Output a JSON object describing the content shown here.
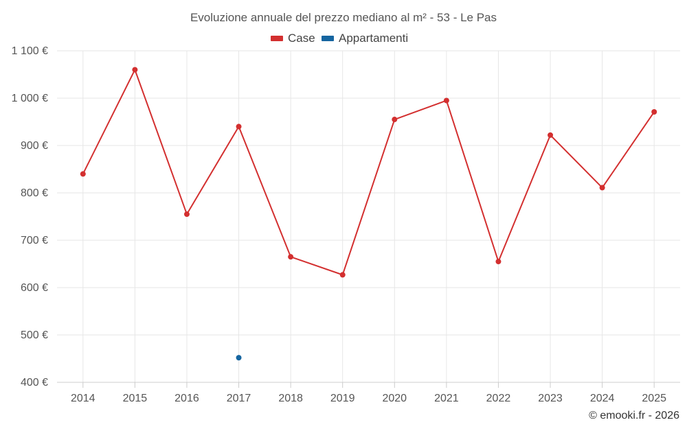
{
  "chart_data": {
    "type": "line",
    "title": "Evoluzione annuale del prezzo mediano al m² - 53 - Le Pas",
    "categories": [
      "2014",
      "2015",
      "2016",
      "2017",
      "2018",
      "2019",
      "2020",
      "2021",
      "2022",
      "2023",
      "2024",
      "2025"
    ],
    "ylim": [
      400,
      1100
    ],
    "yticks": [
      400,
      500,
      600,
      700,
      800,
      900,
      1000,
      1100
    ],
    "ytick_labels": [
      "400 €",
      "500 €",
      "600 €",
      "700 €",
      "800 €",
      "900 €",
      "1 000 €",
      "1 100 €"
    ],
    "grid": true,
    "legend_position": "top-center",
    "series": [
      {
        "name": "Case",
        "color": "#d32f2f",
        "values": [
          840,
          1060,
          755,
          940,
          665,
          627,
          955,
          995,
          655,
          922,
          811,
          971
        ]
      },
      {
        "name": "Appartamenti",
        "color": "#1565a0",
        "values": [
          null,
          null,
          null,
          452,
          null,
          null,
          null,
          null,
          null,
          null,
          null,
          null
        ]
      }
    ]
  },
  "credit": "© emooki.fr - 2026"
}
